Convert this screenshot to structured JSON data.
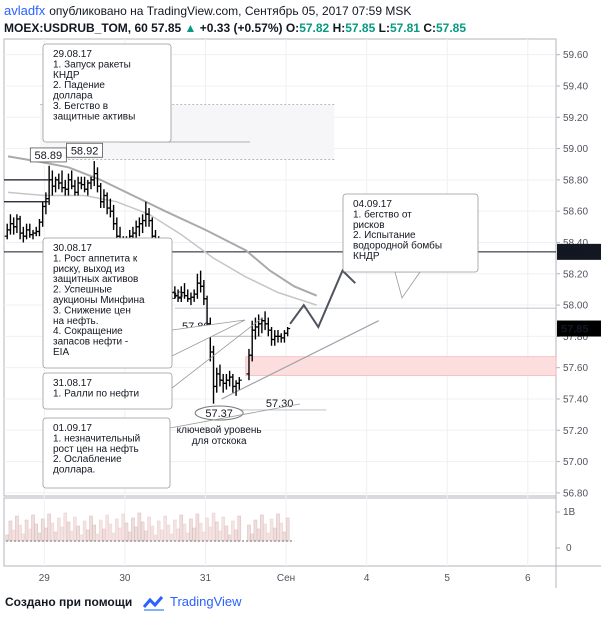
{
  "header": {
    "author": "avladfx",
    "published": "опубликовано на TradingView.com, Сентябрь 05, 2017 07:59 MSK",
    "symbol": "MOEX:USDRUB_TOM, 60",
    "last": "57.85",
    "change": "+0.33 (+0.57%)",
    "open_label": "O:",
    "open": "57.82",
    "high_label": "H:",
    "high": "57.85",
    "low_label": "L:",
    "low": "57.81",
    "close_label": "C:",
    "close": "57.85",
    "up_arrow": "▲"
  },
  "footer": {
    "made_with": "Создано при помощи",
    "brand": "TradingView"
  },
  "colors": {
    "candle": "#000000",
    "ma": "#aaaaaa",
    "current_price_bg": "#000000",
    "level_label_bg": "#131722",
    "support_zone": "#fcdede",
    "accent": "#2962ff"
  },
  "chart_data": {
    "type": "ohlc",
    "ylim": [
      56.78,
      59.7
    ],
    "y_ticks": [
      "56.80",
      "57.00",
      "57.20",
      "57.40",
      "57.60",
      "57.80",
      "58.00",
      "58.20",
      "58.40",
      "58.60",
      "58.80",
      "59.00",
      "59.20",
      "59.40",
      "59.60"
    ],
    "x_ticks": [
      {
        "label": "29",
        "x": 0.5
      },
      {
        "label": "30",
        "x": 1.5
      },
      {
        "label": "31",
        "x": 2.5
      },
      {
        "label": "Сен",
        "x": 3.5
      },
      {
        "label": "4",
        "x": 4.5
      },
      {
        "label": "5",
        "x": 5.5
      },
      {
        "label": "6",
        "x": 6.5
      }
    ],
    "xlim": [
      0,
      6.85
    ],
    "current_price": "57.85",
    "horizontal_level": "58.34",
    "bars": [
      [
        0.04,
        58.44,
        58.52,
        58.42,
        58.48
      ],
      [
        0.08,
        58.48,
        58.58,
        58.45,
        58.52
      ],
      [
        0.12,
        58.52,
        58.56,
        58.45,
        58.5
      ],
      [
        0.16,
        58.5,
        58.58,
        58.46,
        58.55
      ],
      [
        0.2,
        58.55,
        58.57,
        58.42,
        58.46
      ],
      [
        0.24,
        58.46,
        58.5,
        58.4,
        58.44
      ],
      [
        0.28,
        58.44,
        58.52,
        58.42,
        58.48
      ],
      [
        0.32,
        58.48,
        58.52,
        58.43,
        58.45
      ],
      [
        0.36,
        58.45,
        58.48,
        58.42,
        58.46
      ],
      [
        0.4,
        58.46,
        58.5,
        58.44,
        58.47
      ],
      [
        0.44,
        58.47,
        58.55,
        58.44,
        58.53
      ],
      [
        0.48,
        58.53,
        58.66,
        58.5,
        58.63
      ],
      [
        0.52,
        58.63,
        58.72,
        58.58,
        58.68
      ],
      [
        0.56,
        58.68,
        58.89,
        58.64,
        58.8
      ],
      [
        0.6,
        58.8,
        58.86,
        58.7,
        58.76
      ],
      [
        0.64,
        58.76,
        58.82,
        58.72,
        58.8
      ],
      [
        0.68,
        58.8,
        58.84,
        58.74,
        58.78
      ],
      [
        0.72,
        58.78,
        58.86,
        58.72,
        58.75
      ],
      [
        0.76,
        58.75,
        58.8,
        58.7,
        58.74
      ],
      [
        0.8,
        58.74,
        58.84,
        58.7,
        58.8
      ],
      [
        0.84,
        58.8,
        58.86,
        58.74,
        58.76
      ],
      [
        0.88,
        58.76,
        58.8,
        58.7,
        58.72
      ],
      [
        0.92,
        58.72,
        58.82,
        58.7,
        58.78
      ],
      [
        0.96,
        58.78,
        58.82,
        58.74,
        58.77
      ],
      [
        1.0,
        58.77,
        58.82,
        58.72,
        58.74
      ],
      [
        1.04,
        58.74,
        58.8,
        58.7,
        58.78
      ],
      [
        1.08,
        58.78,
        58.82,
        58.74,
        58.8
      ],
      [
        1.12,
        58.8,
        58.92,
        58.76,
        58.84
      ],
      [
        1.16,
        58.84,
        58.88,
        58.72,
        58.76
      ],
      [
        1.2,
        58.76,
        58.78,
        58.62,
        58.66
      ],
      [
        1.24,
        58.66,
        58.74,
        58.62,
        58.7
      ],
      [
        1.28,
        58.7,
        58.72,
        58.58,
        58.62
      ],
      [
        1.32,
        58.62,
        58.68,
        58.56,
        58.6
      ],
      [
        1.36,
        58.6,
        58.64,
        58.48,
        58.52
      ],
      [
        1.4,
        58.52,
        58.56,
        58.4,
        58.44
      ],
      [
        1.44,
        58.44,
        58.5,
        58.36,
        58.4
      ],
      [
        1.48,
        58.4,
        58.44,
        58.3,
        58.34
      ],
      [
        1.52,
        58.34,
        58.44,
        58.32,
        58.42
      ],
      [
        1.56,
        58.42,
        58.48,
        58.38,
        58.44
      ],
      [
        1.6,
        58.44,
        58.5,
        58.38,
        58.46
      ],
      [
        1.64,
        58.46,
        58.54,
        58.42,
        58.5
      ],
      [
        1.68,
        58.5,
        58.56,
        58.44,
        58.52
      ],
      [
        1.72,
        58.52,
        58.58,
        58.46,
        58.54
      ],
      [
        1.76,
        58.54,
        58.66,
        58.5,
        58.58
      ],
      [
        1.8,
        58.58,
        58.62,
        58.5,
        58.54
      ],
      [
        1.84,
        58.54,
        58.56,
        58.4,
        58.44
      ],
      [
        1.88,
        58.44,
        58.48,
        58.36,
        58.4
      ],
      [
        1.92,
        58.4,
        58.44,
        58.3,
        58.34
      ],
      [
        1.96,
        58.34,
        58.38,
        58.2,
        58.24
      ],
      [
        2.0,
        58.24,
        58.3,
        58.18,
        58.22
      ],
      [
        2.04,
        58.22,
        58.26,
        58.08,
        58.12
      ],
      [
        2.08,
        58.12,
        58.16,
        58.04,
        58.08
      ],
      [
        2.12,
        58.08,
        58.12,
        58.04,
        58.06
      ],
      [
        2.16,
        58.06,
        58.1,
        58.02,
        58.05
      ],
      [
        2.2,
        58.05,
        58.12,
        58.02,
        58.08
      ],
      [
        2.24,
        58.08,
        58.14,
        58.04,
        58.06
      ],
      [
        2.28,
        58.06,
        58.1,
        58.02,
        58.04
      ],
      [
        2.32,
        58.04,
        58.08,
        58.0,
        58.05
      ],
      [
        2.36,
        58.05,
        58.1,
        58.02,
        58.07
      ],
      [
        2.4,
        58.07,
        58.2,
        58.04,
        58.14
      ],
      [
        2.44,
        58.14,
        58.22,
        58.08,
        58.12
      ],
      [
        2.48,
        58.12,
        58.16,
        58.0,
        58.04
      ],
      [
        2.52,
        58.04,
        58.06,
        57.84,
        57.88
      ],
      [
        2.56,
        57.88,
        57.92,
        57.64,
        57.7
      ],
      [
        2.6,
        57.7,
        57.74,
        57.37,
        57.48
      ],
      [
        2.64,
        57.48,
        57.6,
        57.44,
        57.56
      ],
      [
        2.68,
        57.56,
        57.62,
        57.48,
        57.52
      ],
      [
        2.72,
        57.52,
        57.56,
        57.44,
        57.5
      ],
      [
        2.76,
        57.5,
        57.56,
        57.46,
        57.52
      ],
      [
        2.8,
        57.52,
        57.58,
        57.48,
        57.54
      ],
      [
        2.84,
        57.54,
        57.56,
        57.44,
        57.48
      ],
      [
        2.88,
        57.48,
        57.52,
        57.42,
        57.5
      ],
      [
        2.92,
        57.5,
        57.54,
        57.46,
        57.52
      ],
      [
        3.04,
        57.56,
        57.72,
        57.52,
        57.68
      ],
      [
        3.08,
        57.68,
        57.9,
        57.64,
        57.84
      ],
      [
        3.12,
        57.84,
        57.92,
        57.78,
        57.86
      ],
      [
        3.16,
        57.86,
        57.94,
        57.8,
        57.88
      ],
      [
        3.2,
        57.88,
        57.92,
        57.82,
        57.9
      ],
      [
        3.24,
        57.9,
        57.96,
        57.84,
        57.88
      ],
      [
        3.28,
        57.88,
        57.92,
        57.8,
        57.84
      ],
      [
        3.32,
        57.84,
        57.86,
        57.74,
        57.78
      ],
      [
        3.36,
        57.78,
        57.84,
        57.74,
        57.8
      ],
      [
        3.4,
        57.8,
        57.84,
        57.76,
        57.8
      ],
      [
        3.44,
        57.8,
        57.82,
        57.76,
        57.79
      ],
      [
        3.48,
        57.79,
        57.84,
        57.76,
        57.82
      ],
      [
        3.52,
        57.82,
        57.86,
        57.8,
        57.85
      ]
    ],
    "moving_average_1": [
      [
        0.05,
        58.95
      ],
      [
        0.4,
        58.92
      ],
      [
        0.8,
        58.88
      ],
      [
        1.2,
        58.8
      ],
      [
        1.6,
        58.7
      ],
      [
        2.0,
        58.6
      ],
      [
        2.5,
        58.48
      ],
      [
        3.0,
        58.35
      ],
      [
        3.3,
        58.22
      ],
      [
        3.6,
        58.12
      ],
      [
        3.88,
        58.06
      ]
    ],
    "moving_average_2": [
      [
        0.05,
        58.72
      ],
      [
        0.5,
        58.7
      ],
      [
        1.0,
        58.7
      ],
      [
        1.4,
        58.66
      ],
      [
        1.8,
        58.58
      ],
      [
        2.2,
        58.45
      ],
      [
        2.6,
        58.3
      ],
      [
        3.0,
        58.18
      ],
      [
        3.4,
        58.08
      ],
      [
        3.88,
        58.0
      ]
    ],
    "projection": [
      [
        3.55,
        57.88
      ],
      [
        3.72,
        58.0
      ],
      [
        3.9,
        57.86
      ],
      [
        4.2,
        58.22
      ],
      [
        4.36,
        58.14
      ]
    ],
    "support_trendline": [
      [
        2.7,
        57.4
      ],
      [
        4.65,
        57.9
      ]
    ],
    "support_zone": [
      57.55,
      57.67
    ],
    "levels": [
      {
        "value": 58.0,
        "label": "58.00"
      },
      {
        "value": 57.8,
        "label": "57.80"
      },
      {
        "value": 57.3,
        "label": "57.30"
      },
      {
        "value": 57.37,
        "label": "57.37"
      }
    ],
    "peak_labels": [
      "58.89",
      "58.92"
    ],
    "key_level_caption": [
      "ключевой уровень",
      "для отскока"
    ],
    "annotations": [
      {
        "id": "n1",
        "lines": [
          "29.08.17",
          "1. Запуск ракеты",
          "КНДР",
          "2. Падение",
          "доллара",
          "3. Бегство в",
          "защитные активы"
        ]
      },
      {
        "id": "n2",
        "lines": [
          "30.08.17",
          "1. Рост аппетита к",
          "риску, выход из",
          "защитных активов",
          "2. Успешные",
          "аукционы Минфина",
          "3. Снижение цен",
          "на нефть.",
          "4. Сокращение",
          "запасов нефти -",
          "EIA"
        ]
      },
      {
        "id": "n3",
        "lines": [
          "31.08.17",
          "1. Ралли по нефти"
        ]
      },
      {
        "id": "n4",
        "lines": [
          "01.09.17",
          "1. незначительный",
          "рост цен на нефть",
          "2. Ослабление",
          "доллара."
        ]
      },
      {
        "id": "n5",
        "lines": [
          "04.09.17",
          "1. бегство от",
          "рисков",
          "2. Испытание",
          "водородной бомбы",
          "КНДР"
        ]
      }
    ],
    "volume_axis": [
      "1B",
      "0"
    ]
  }
}
